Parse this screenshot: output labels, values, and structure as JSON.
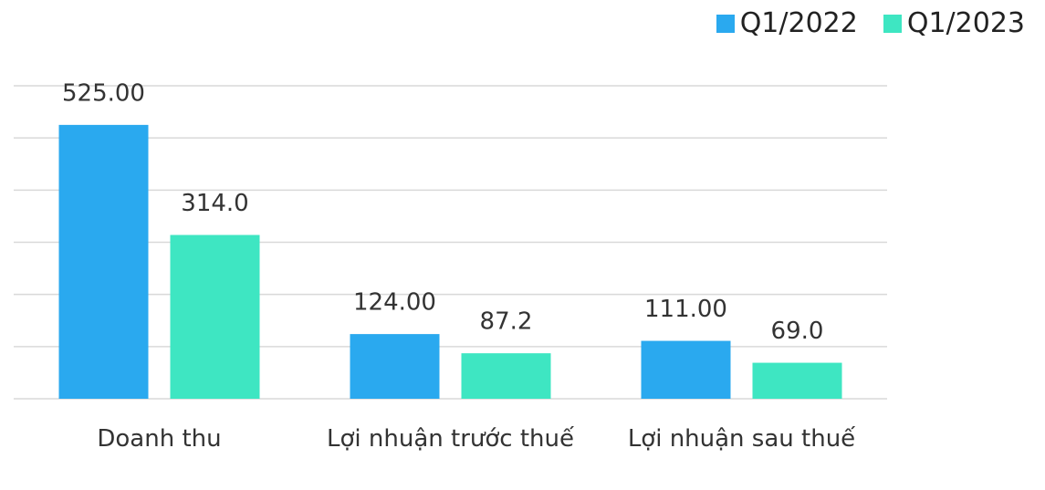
{
  "chart_data": {
    "type": "bar",
    "categories": [
      "Doanh thu",
      "Lợi nhuận trước thuế",
      "Lợi nhuận sau thuế"
    ],
    "series": [
      {
        "name": "Q1/2022",
        "color": "#2aa9ef",
        "values": [
          525,
          124,
          111
        ],
        "value_labels": [
          "525.00",
          "124.00",
          "111.00"
        ]
      },
      {
        "name": "Q1/2023",
        "color": "#3ee6c2",
        "values": [
          314,
          87.2,
          69
        ],
        "value_labels": [
          "314.0",
          "87.2",
          "69.0"
        ]
      }
    ],
    "ylim": [
      0,
      600
    ],
    "yticks": [
      0,
      100,
      200,
      300,
      400,
      500,
      600
    ],
    "grid": true,
    "legend": "top-right"
  }
}
